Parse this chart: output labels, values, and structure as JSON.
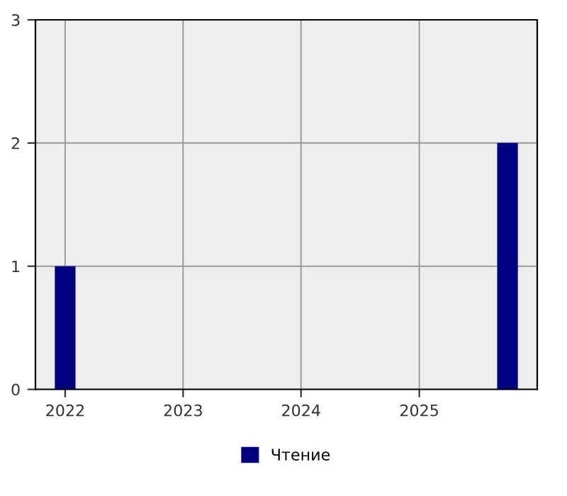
{
  "chart_data": {
    "type": "bar",
    "x": [
      "2022-01",
      "2025-10"
    ],
    "series": [
      {
        "name": "Чтение",
        "color": "#000080",
        "values": [
          1,
          2
        ]
      }
    ],
    "xlim": [
      "2021-10",
      "2026-01"
    ],
    "xticks": [
      {
        "value": "2022-01",
        "label": "2022"
      },
      {
        "value": "2023-01",
        "label": "2023"
      },
      {
        "value": "2024-01",
        "label": "2024"
      },
      {
        "value": "2025-01",
        "label": "2025"
      }
    ],
    "ylim": [
      0,
      3
    ],
    "yticks": [
      0,
      1,
      2,
      3
    ],
    "grid": true,
    "legend": "bottom"
  }
}
